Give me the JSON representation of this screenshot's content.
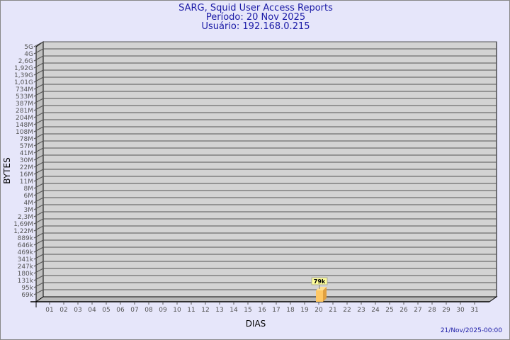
{
  "chart_data": {
    "type": "bar",
    "title": "SARG, Squid User Access Reports",
    "subtitle1": "Período: 20 Nov 2025",
    "subtitle2": "Usuário: 192.168.0.215",
    "xlabel": "DIAS",
    "ylabel": "BYTES",
    "y_scale": "log",
    "y_ticks": [
      "5G",
      "4G",
      "2,6G",
      "1,92G",
      "1,39G",
      "1,01G",
      "734M",
      "533M",
      "387M",
      "281M",
      "204M",
      "148M",
      "108M",
      "78M",
      "57M",
      "41M",
      "30M",
      "22M",
      "16M",
      "11M",
      "8M",
      "6M",
      "4M",
      "3M",
      "2,3M",
      "1,69M",
      "1,22M",
      "889k",
      "646k",
      "469k",
      "341k",
      "247k",
      "180k",
      "131k",
      "95k",
      "69k"
    ],
    "categories": [
      "01",
      "02",
      "03",
      "04",
      "05",
      "06",
      "07",
      "08",
      "09",
      "10",
      "11",
      "12",
      "13",
      "14",
      "15",
      "16",
      "17",
      "18",
      "19",
      "20",
      "21",
      "22",
      "23",
      "24",
      "25",
      "26",
      "27",
      "28",
      "29",
      "30",
      "31"
    ],
    "bars": [
      {
        "category": "20",
        "value": "79k",
        "label": "79k"
      }
    ],
    "grid": true,
    "colors": {
      "background": "#e6e6fa",
      "plot": "#d3d3d3",
      "bar_front": "#ffc864",
      "bar_side": "#e0a040",
      "label_box": "#ffff99",
      "title": "#1a1aa6"
    }
  },
  "footer": {
    "timestamp": "21/Nov/2025-00:00"
  }
}
